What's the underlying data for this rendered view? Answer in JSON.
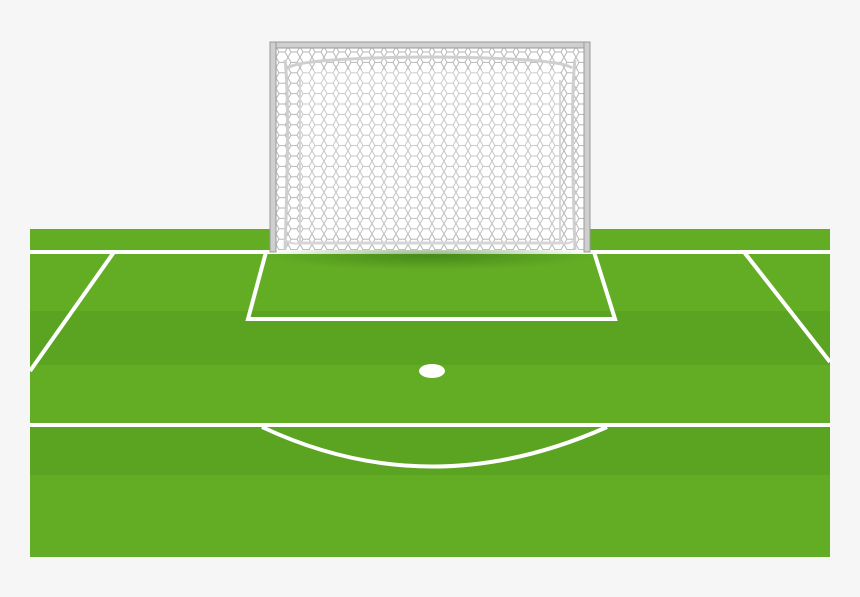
{
  "scene": {
    "subject": "soccer-goal-and-penalty-area",
    "colors": {
      "background": "#f6f6f6",
      "grass_light": "#63ad25",
      "grass_mid": "#5ca523",
      "grass_dark": "#519c1e",
      "line": "#ffffff",
      "net": "#ffffff",
      "net_mesh": "#b9b9b9",
      "post": "#c9c9c9",
      "post_shadow": "#8e8e8e",
      "goal_shadow": "#3d7f17"
    },
    "icons": {
      "goal": "goal-net-icon",
      "penalty_spot": "penalty-spot-icon"
    }
  }
}
